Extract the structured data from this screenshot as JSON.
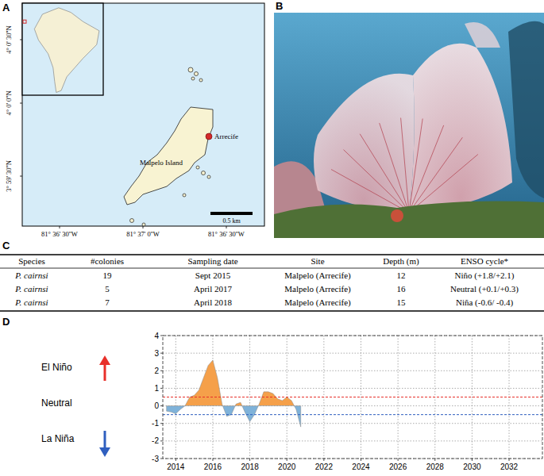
{
  "panel_a": {
    "label": "A",
    "lat_labels": [
      "4° 0' 30''N",
      "4° 0' 0''N",
      "3° 59' 30''N"
    ],
    "lon_labels": [
      "81° 36' 30''W",
      "81° 37' 0''W",
      "81° 36' 30''W"
    ],
    "island": "Malpelo Island",
    "site": "Arrecife",
    "scale": "0.5 km"
  },
  "panel_b": {
    "label": "B"
  },
  "table": {
    "label": "C",
    "header": [
      "Species",
      "#colonies",
      "Sampling date",
      "Site",
      "Depth (m)",
      "ENSO cycle*"
    ],
    "rows": [
      [
        "P. cairnsi",
        19,
        "Sept 2015",
        "Malpelo (Arrecife)",
        12,
        "Niño (+1.8/+2.1)"
      ],
      [
        "P. cairnsi",
        5,
        "April 2017",
        "Malpelo (Arrecife)",
        16,
        "Neutral (+0.1/+0.3)"
      ],
      [
        "P. cairnsi",
        7,
        "April 2018",
        "Malpelo (Arrecife)",
        15,
        "Niña (-0.6/ -0.4)"
      ]
    ]
  },
  "chart_data": {
    "label": "D",
    "type": "area",
    "x": [
      2013.5,
      2013.75,
      2014,
      2014.25,
      2014.5,
      2014.75,
      2015,
      2015.25,
      2015.5,
      2015.75,
      2016,
      2016.25,
      2016.5,
      2016.75,
      2017,
      2017.25,
      2017.5,
      2017.75,
      2018,
      2018.25,
      2018.5,
      2018.75,
      2019,
      2019.25,
      2019.5,
      2019.75,
      2020,
      2020.25,
      2020.5,
      2020.75
    ],
    "series": [
      {
        "values": [
          -0.3,
          -0.35,
          -0.45,
          -0.2,
          0.0,
          0.5,
          0.6,
          0.9,
          1.6,
          2.3,
          2.6,
          1.6,
          0.1,
          -0.6,
          -0.5,
          0.1,
          0.2,
          -0.4,
          -0.9,
          -0.5,
          0.1,
          0.8,
          0.8,
          0.7,
          0.4,
          0.3,
          0.5,
          0.3,
          -0.2,
          -1.2
        ],
        "colors": [
          "#f5a04a",
          "#7fb2d9"
        ]
      }
    ],
    "xlim": [
      2013.3,
      2033.8
    ],
    "ylim": [
      -3,
      4
    ],
    "xticks": [
      2014,
      2016,
      2018,
      2020,
      2022,
      2024,
      2026,
      2028,
      2030,
      2032
    ],
    "yticks": [
      -3,
      -2,
      -1,
      0,
      1,
      2,
      3,
      4
    ],
    "grid": true,
    "reference_lines": [
      {
        "value": 0.5,
        "color": "#e8302a"
      },
      {
        "value": -0.5,
        "color": "#2f5fbf"
      }
    ],
    "annotations": [
      "El Niño",
      "Neutral",
      "La Niña"
    ]
  }
}
